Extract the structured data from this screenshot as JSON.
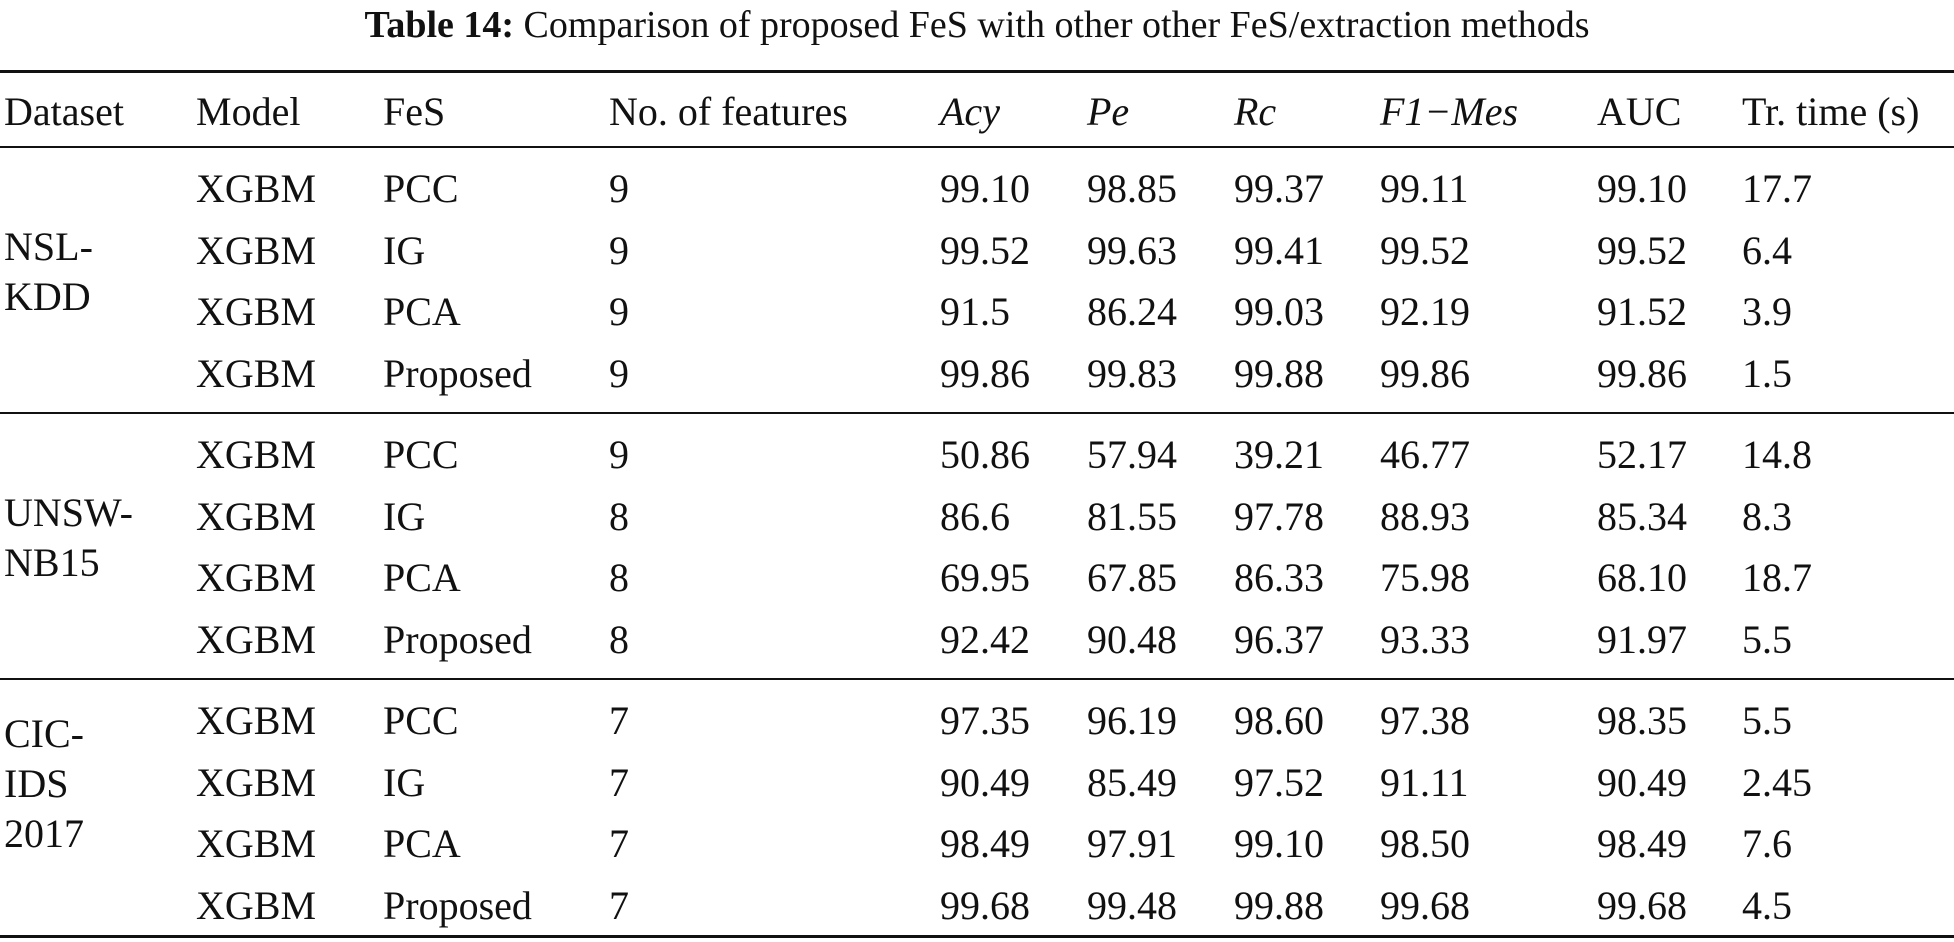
{
  "caption": {
    "label": "Table 14:",
    "text": "Comparison of proposed FeS with other other FeS/extraction methods"
  },
  "headers": [
    "Dataset",
    "Model",
    "FeS",
    "No. of features",
    "Acy",
    "Pe",
    "Rc",
    "F1−Mes",
    "AUC",
    "Tr. time (s)"
  ],
  "groups": [
    {
      "dataset_lines": [
        "NSL-",
        "KDD"
      ],
      "rows": [
        [
          "XGBM",
          "PCC",
          "9",
          "99.10",
          "98.85",
          "99.37",
          "99.11",
          "99.10",
          "17.7"
        ],
        [
          "XGBM",
          "IG",
          "9",
          "99.52",
          "99.63",
          "99.41",
          "99.52",
          "99.52",
          "6.4"
        ],
        [
          "XGBM",
          "PCA",
          "9",
          "91.5",
          "86.24",
          "99.03",
          "92.19",
          "91.52",
          "3.9"
        ],
        [
          "XGBM",
          "Proposed",
          "9",
          "99.86",
          "99.83",
          "99.88",
          "99.86",
          "99.86",
          "1.5"
        ]
      ]
    },
    {
      "dataset_lines": [
        "UNSW-",
        "NB15"
      ],
      "rows": [
        [
          "XGBM",
          "PCC",
          "9",
          "50.86",
          "57.94",
          "39.21",
          "46.77",
          "52.17",
          "14.8"
        ],
        [
          "XGBM",
          "IG",
          "8",
          "86.6",
          "81.55",
          "97.78",
          "88.93",
          "85.34",
          "8.3"
        ],
        [
          "XGBM",
          "PCA",
          "8",
          "69.95",
          "67.85",
          "86.33",
          "75.98",
          "68.10",
          "18.7"
        ],
        [
          "XGBM",
          "Proposed",
          "8",
          "92.42",
          "90.48",
          "96.37",
          "93.33",
          "91.97",
          "5.5"
        ]
      ]
    },
    {
      "dataset_lines": [
        "CIC-",
        "IDS",
        "2017"
      ],
      "rows": [
        [
          "XGBM",
          "PCC",
          "7",
          "97.35",
          "96.19",
          "98.60",
          "97.38",
          "98.35",
          "5.5"
        ],
        [
          "XGBM",
          "IG",
          "7",
          "90.49",
          "85.49",
          "97.52",
          "91.11",
          "90.49",
          "2.45"
        ],
        [
          "XGBM",
          "PCA",
          "7",
          "98.49",
          "97.91",
          "99.10",
          "98.50",
          "98.49",
          "7.6"
        ],
        [
          "XGBM",
          "Proposed",
          "7",
          "99.68",
          "99.48",
          "99.88",
          "99.68",
          "99.68",
          "4.5"
        ]
      ]
    }
  ]
}
